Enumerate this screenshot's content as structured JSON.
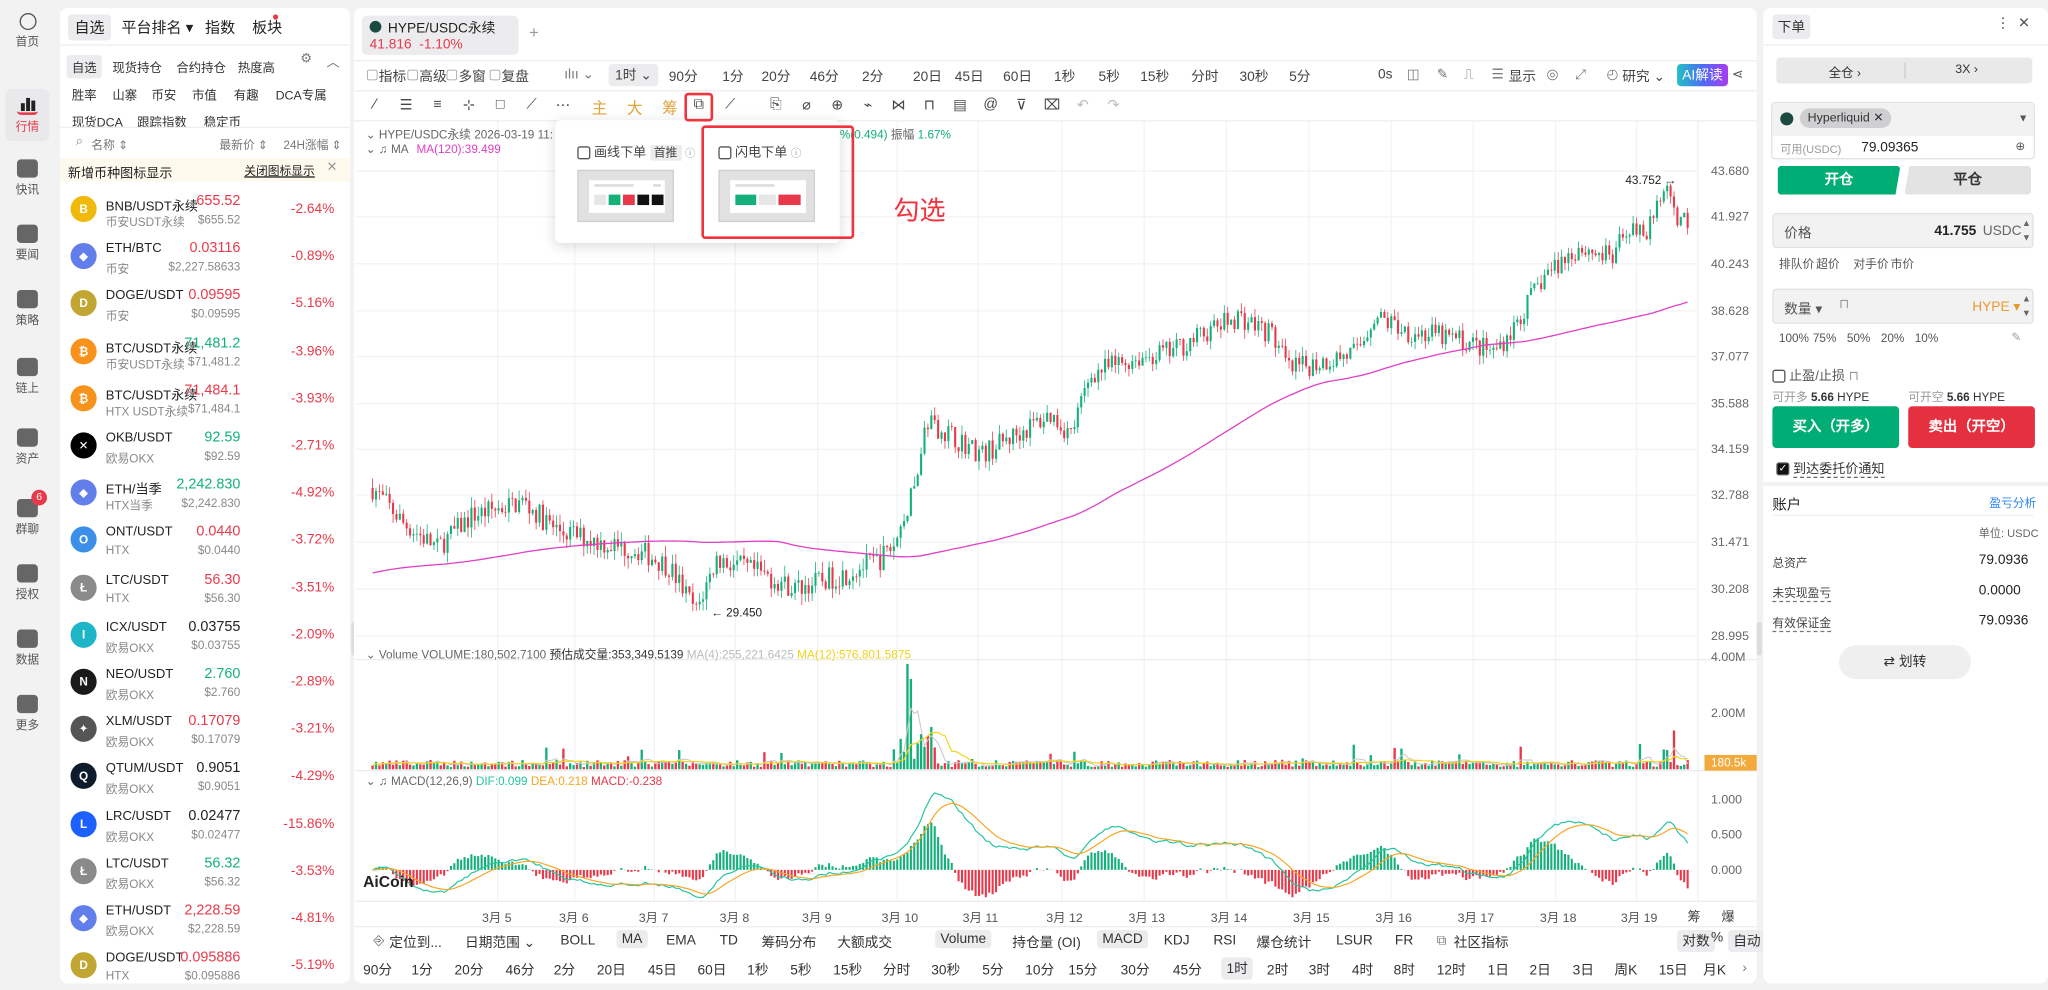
{
  "nav": {
    "items": [
      {
        "label": "首页",
        "icon": "aicoin-logo-icon"
      },
      {
        "label": "行情",
        "icon": "bar-chart-icon"
      },
      {
        "label": "快讯",
        "icon": "news-icon"
      },
      {
        "label": "要闻",
        "icon": "document-icon"
      },
      {
        "label": "策略",
        "icon": "robot-icon"
      },
      {
        "label": "链上",
        "icon": "chain-icon"
      },
      {
        "label": "资产",
        "icon": "wallet-icon"
      },
      {
        "label": "群聊",
        "icon": "chat-icon"
      },
      {
        "label": "授权",
        "icon": "key-icon"
      },
      {
        "label": "数据",
        "icon": "monitor-icon"
      },
      {
        "label": "更多",
        "icon": "grid-icon"
      }
    ],
    "active": "行情",
    "chat_badge": "6"
  },
  "market": {
    "tabs": [
      "自选",
      "平台排名 ▾",
      "指数",
      "板块"
    ],
    "filters_row1": [
      "自选",
      "现货持仓",
      "合约持仓",
      "热度高"
    ],
    "filters_row2": [
      "胜率",
      "山寨",
      "币安",
      "市值",
      "有趣",
      "DCA专属"
    ],
    "filters_row3": [
      "现货DCA",
      "跟踪指数",
      "稳定币"
    ],
    "col_name": "名称 ⇕",
    "col_price": "最新价 ⇕",
    "col_change": "24H涨幅 ⇕",
    "banner_text": "新增币种图标显示",
    "banner_link": "关闭图标显示",
    "coins": [
      {
        "pair": "BNB/USDT永续",
        "exchange": "币安USDT永续",
        "price": "655.52",
        "usd": "$655.52",
        "change": "-2.64%",
        "dir": "down",
        "logo": "#f0b90b",
        "sym": "B"
      },
      {
        "pair": "ETH/BTC",
        "exchange": "币安",
        "price": "0.03116",
        "usd": "$2,227.58633",
        "change": "-0.89%",
        "dir": "down",
        "logo": "#627eea",
        "sym": "◆"
      },
      {
        "pair": "DOGE/USDT",
        "exchange": "币安",
        "price": "0.09595",
        "usd": "$0.09595",
        "change": "-5.16%",
        "dir": "down",
        "logo": "#c2a633",
        "sym": "D"
      },
      {
        "pair": "BTC/USDT永续",
        "exchange": "币安USDT永续",
        "price": "71,481.2",
        "usd": "$71,481.2",
        "change": "-3.96%",
        "dir": "up",
        "logo": "#f7931a",
        "sym": "₿"
      },
      {
        "pair": "BTC/USDT永续",
        "exchange": "HTX USDT永续",
        "price": "71,484.1",
        "usd": "$71,484.1",
        "change": "-3.93%",
        "dir": "down",
        "logo": "#f7931a",
        "sym": "₿"
      },
      {
        "pair": "OKB/USDT",
        "exchange": "欧易OKX",
        "price": "92.59",
        "usd": "$92.59",
        "change": "-2.71%",
        "dir": "up",
        "logo": "#000000",
        "sym": "✕"
      },
      {
        "pair": "ETH/当季",
        "exchange": "HTX当季",
        "price": "2,242.830",
        "usd": "$2,242.830",
        "change": "-4.92%",
        "dir": "up",
        "logo": "#627eea",
        "sym": "◆"
      },
      {
        "pair": "ONT/USDT",
        "exchange": "HTX",
        "price": "0.0440",
        "usd": "$0.0440",
        "change": "-3.72%",
        "dir": "down",
        "logo": "#3b8fe8",
        "sym": "O"
      },
      {
        "pair": "LTC/USDT",
        "exchange": "HTX",
        "price": "56.30",
        "usd": "$56.30",
        "change": "-3.51%",
        "dir": "down",
        "logo": "#8a8a8a",
        "sym": "Ł"
      },
      {
        "pair": "ICX/USDT",
        "exchange": "欧易OKX",
        "price": "0.03755",
        "usd": "$0.03755",
        "change": "-2.09%",
        "dir": "flat",
        "logo": "#1fb5c9",
        "sym": "I"
      },
      {
        "pair": "NEO/USDT",
        "exchange": "欧易OKX",
        "price": "2.760",
        "usd": "$2.760",
        "change": "-2.89%",
        "dir": "up",
        "logo": "#1a1a1a",
        "sym": "N"
      },
      {
        "pair": "XLM/USDT",
        "exchange": "欧易OKX",
        "price": "0.17079",
        "usd": "$0.17079",
        "change": "-3.21%",
        "dir": "down",
        "logo": "#555555",
        "sym": "✦"
      },
      {
        "pair": "QTUM/USDT",
        "exchange": "欧易OKX",
        "price": "0.9051",
        "usd": "$0.9051",
        "change": "-4.29%",
        "dir": "flat",
        "logo": "#0d1b2a",
        "sym": "Q"
      },
      {
        "pair": "LRC/USDT",
        "exchange": "欧易OKX",
        "price": "0.02477",
        "usd": "$0.02477",
        "change": "-15.86%",
        "dir": "flat",
        "logo": "#1c60ff",
        "sym": "L"
      },
      {
        "pair": "LTC/USDT",
        "exchange": "欧易OKX",
        "price": "56.32",
        "usd": "$56.32",
        "change": "-3.53%",
        "dir": "up",
        "logo": "#8a8a8a",
        "sym": "Ł"
      },
      {
        "pair": "ETH/USDT",
        "exchange": "欧易OKX",
        "price": "2,228.59",
        "usd": "$2,228.59",
        "change": "-4.81%",
        "dir": "down",
        "logo": "#627eea",
        "sym": "◆"
      },
      {
        "pair": "DOGE/USDT",
        "exchange": "HTX",
        "price": "0.095886",
        "usd": "$0.095886",
        "change": "-5.19%",
        "dir": "down",
        "logo": "#c2a633",
        "sym": "D"
      }
    ]
  },
  "colors": {
    "up": "#14b07a",
    "down": "#e8394a",
    "ma120": "#e040c8",
    "accent": "#f0333d",
    "hype": "#e99a2c"
  },
  "chart": {
    "tab": {
      "symbol": "HYPE/USDC永续",
      "price": "41.816",
      "change": "-1.10%",
      "add": "+"
    },
    "tools": [
      "指标",
      "高级",
      "多窗",
      "复盘"
    ],
    "interval_active": "1时 ⌄",
    "intervals": [
      "90分",
      "1分",
      "20分",
      "46分",
      "2分",
      "20日",
      "45日",
      "60日",
      "1秒",
      "5秒",
      "15秒",
      "分时",
      "30秒",
      "5分"
    ],
    "right_tools": {
      "countdown": "0s",
      "display": "显示",
      "research": "研究 ⌄",
      "ai": "AI解读"
    },
    "drawing_text_tools": [
      "主",
      "大",
      "筹"
    ],
    "info_line1": "HYPE/USDC永续  2026-03-19 11:",
    "info_line1_tail_pct": "%(0.494)",
    "info_amp_label": "振幅",
    "info_amp_value": "1.67%",
    "ma_label": "MA",
    "ma_value": "MA(120):39.499",
    "y_labels": [
      "43.680",
      "41.927",
      "40.243",
      "38.628",
      "37.077",
      "35.588",
      "34.159",
      "32.788",
      "31.471",
      "30.208",
      "28.995"
    ],
    "y_scale": "log",
    "high_label": "43.752",
    "low_label": "29.450",
    "volume": {
      "title": "Volume",
      "volume": "VOLUME:180,502.7100",
      "estimate": "预估成交量:353,349.5139",
      "ma4": "MA(4):255,221.6425",
      "ma12": "MA(12):576,801.5875",
      "y_labels": [
        "4.00M",
        "2.00M"
      ],
      "last": "180.5k"
    },
    "macd": {
      "title": "MACD(12,26,9)",
      "dif": "DIF:0.099",
      "dea": "DEA:0.218",
      "macd": "MACD:-0.238",
      "y_labels": [
        "1.000",
        "0.500",
        "0.000"
      ]
    },
    "x_labels": [
      "3月 5",
      "3月 6",
      "3月 7",
      "3月 8",
      "3月 9",
      "3月 10",
      "3月 11",
      "3月 12",
      "3月 13",
      "3月 14",
      "3月 15",
      "3月 16",
      "3月 17",
      "3月 18",
      "3月 19"
    ],
    "corner_labels": [
      "筹",
      "爆"
    ],
    "watermark": "AiCoin",
    "price_path": [
      [
        -39,
        33.0
      ],
      [
        -30,
        32.0
      ],
      [
        -20,
        31.3
      ],
      [
        -10,
        32.2
      ],
      [
        5,
        32.6
      ],
      [
        15,
        31.8
      ],
      [
        30,
        31.4
      ],
      [
        40,
        31.2
      ],
      [
        48,
        30.8
      ],
      [
        56,
        29.6
      ],
      [
        62,
        31.0
      ],
      [
        75,
        30.6
      ],
      [
        85,
        30.2
      ],
      [
        100,
        30.6
      ],
      [
        110,
        31.0
      ],
      [
        115,
        31.5
      ],
      [
        120,
        33.0
      ],
      [
        124,
        35.0
      ],
      [
        130,
        34.6
      ],
      [
        140,
        34.0
      ],
      [
        150,
        34.6
      ],
      [
        160,
        35.2
      ],
      [
        166,
        34.6
      ],
      [
        172,
        36.5
      ],
      [
        185,
        37.0
      ],
      [
        195,
        37.2
      ],
      [
        205,
        37.8
      ],
      [
        215,
        38.4
      ],
      [
        225,
        37.8
      ],
      [
        230,
        36.6
      ],
      [
        240,
        36.9
      ],
      [
        250,
        37.2
      ],
      [
        255,
        38.4
      ],
      [
        265,
        37.9
      ],
      [
        280,
        37.6
      ],
      [
        290,
        37.2
      ],
      [
        296,
        38.0
      ],
      [
        305,
        39.8
      ],
      [
        315,
        40.8
      ],
      [
        325,
        40.4
      ],
      [
        330,
        41.6
      ],
      [
        335,
        41.2
      ],
      [
        340,
        43.0
      ],
      [
        343,
        42.0
      ],
      [
        347,
        41.8
      ]
    ]
  },
  "popup": {
    "opt1": "画线下单",
    "opt1_badge": "首推",
    "opt2": "闪电下单",
    "opt1_checked": false,
    "opt2_checked": false
  },
  "annotation": "勾选",
  "bottom": {
    "row1_left": [
      "定位到...",
      "日期范围 ⌄"
    ],
    "indicators_main": [
      "BOLL",
      "MA",
      "EMA",
      "TD",
      "筹码分布",
      "大额成交"
    ],
    "indicators_sub": [
      "Volume",
      "持仓量 (OI)",
      "MACD",
      "KDJ",
      "RSI",
      "爆仓统计",
      "LSUR",
      "FR",
      "社区指标"
    ],
    "active": [
      "MA",
      "Volume",
      "MACD"
    ],
    "scale": [
      "对数",
      "%",
      "自动"
    ],
    "intervals": [
      "90分",
      "1分",
      "20分",
      "46分",
      "2分",
      "20日",
      "45日",
      "60日",
      "1秒",
      "5秒",
      "15秒",
      "分时",
      "30秒",
      "5分",
      "10分",
      "15分",
      "30分",
      "45分",
      "1时",
      "2时",
      "3时",
      "4时",
      "8时",
      "12时",
      "1日",
      "2日",
      "3日",
      "周K",
      "15日",
      "月K"
    ],
    "interval_active": "1时"
  },
  "order": {
    "title": "下单",
    "margin_mode": "全仓 ›",
    "leverage": "3X ›",
    "exchange": "Hyperliquid",
    "avail_label": "可用(USDC)",
    "avail_value": "79.09365",
    "open": "开仓",
    "close": "平仓",
    "price_label": "价格",
    "price_value": "41.755",
    "price_unit": "USDC",
    "price_types": [
      "排队价",
      "超价",
      "对手价",
      "市价"
    ],
    "qty_label": "数量 ▾",
    "qty_unit": "HYPE ▾",
    "percents": [
      "100%",
      "75%",
      "50%",
      "20%",
      "10%"
    ],
    "tpsl": "止盈/止损",
    "can_long_label": "可开多",
    "can_long": "5.66",
    "can_short_label": "可开空",
    "can_short": "5.66",
    "asset": "HYPE",
    "buy": "买入（开多）",
    "sell": "卖出（开空）",
    "notify": "到达委托价通知",
    "notify_checked": true,
    "account": "账户",
    "pnl_analysis": "盈亏分析",
    "unit": "单位: USDC",
    "rows": [
      {
        "label": "总资产",
        "value": "79.0936"
      },
      {
        "label": "未实现盈亏",
        "value": "0.0000"
      },
      {
        "label": "有效保证金",
        "value": "79.0936"
      }
    ],
    "transfer": "⇄  划转"
  }
}
